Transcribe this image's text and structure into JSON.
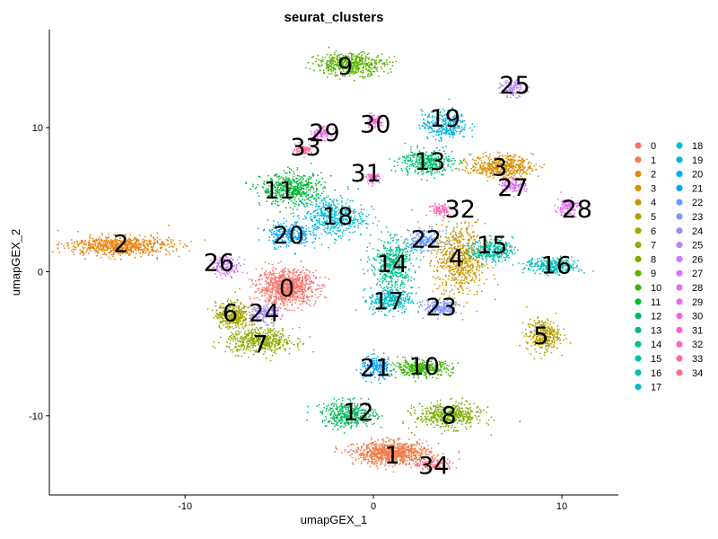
{
  "chart_data": {
    "type": "scatter",
    "title": "seurat_clusters",
    "xlabel": "umapGEX_1",
    "ylabel": "umapGEX_2",
    "xlim": [
      -17.2,
      13.0
    ],
    "ylim": [
      -15.5,
      16.8
    ],
    "xticks": [
      {
        "value": -10,
        "label": "-10"
      },
      {
        "value": 0,
        "label": "0"
      },
      {
        "value": 10,
        "label": "10"
      }
    ],
    "yticks": [
      {
        "value": 10,
        "label": "10"
      },
      {
        "value": 0,
        "label": "0"
      },
      {
        "value": -10,
        "label": "-10"
      }
    ],
    "grid": false,
    "legend_position": "right",
    "clusters": [
      {
        "id": "0",
        "label": "0",
        "color": "#F8766D",
        "center": [
          -4.6,
          -1.1
        ],
        "spread": [
          1.4,
          1.1
        ],
        "n": 900
      },
      {
        "id": "1",
        "label": "1",
        "color": "#F07E4C",
        "center": [
          1.0,
          -12.6
        ],
        "spread": [
          1.8,
          0.7
        ],
        "n": 900
      },
      {
        "id": "2",
        "label": "2",
        "color": "#E68613",
        "center": [
          -13.5,
          1.8
        ],
        "spread": [
          2.5,
          0.6
        ],
        "n": 700
      },
      {
        "id": "3",
        "label": "3",
        "color": "#D89000",
        "center": [
          6.8,
          7.3
        ],
        "spread": [
          1.5,
          0.7
        ],
        "n": 500
      },
      {
        "id": "4",
        "label": "4",
        "color": "#C79800",
        "center": [
          4.6,
          0.8
        ],
        "spread": [
          1.2,
          2.3
        ],
        "n": 650
      },
      {
        "id": "5",
        "label": "5",
        "color": "#B79F00",
        "center": [
          9.0,
          -4.4
        ],
        "spread": [
          0.8,
          1.0
        ],
        "n": 350
      },
      {
        "id": "6",
        "label": "6",
        "color": "#A3A500",
        "center": [
          -7.5,
          -3.0
        ],
        "spread": [
          0.8,
          0.8
        ],
        "n": 350
      },
      {
        "id": "7",
        "label": "7",
        "color": "#8EAB00",
        "center": [
          -6.0,
          -4.8
        ],
        "spread": [
          1.6,
          0.8
        ],
        "n": 500
      },
      {
        "id": "8",
        "label": "8",
        "color": "#7CAE00",
        "center": [
          4.0,
          -10.0
        ],
        "spread": [
          1.6,
          0.8
        ],
        "n": 450
      },
      {
        "id": "9",
        "label": "9",
        "color": "#5BB300",
        "center": [
          -1.2,
          14.4
        ],
        "spread": [
          1.7,
          0.7
        ],
        "n": 500
      },
      {
        "id": "10",
        "label": "10",
        "color": "#39B600",
        "center": [
          2.5,
          -6.7
        ],
        "spread": [
          1.5,
          0.5
        ],
        "n": 350
      },
      {
        "id": "11",
        "label": "11",
        "color": "#00BA38",
        "center": [
          -4.3,
          5.7
        ],
        "spread": [
          1.5,
          1.0
        ],
        "n": 500
      },
      {
        "id": "12",
        "label": "12",
        "color": "#00BC59",
        "center": [
          -1.3,
          -9.9
        ],
        "spread": [
          1.3,
          0.8
        ],
        "n": 400
      },
      {
        "id": "13",
        "label": "13",
        "color": "#00BE6C",
        "center": [
          2.8,
          7.6
        ],
        "spread": [
          1.3,
          0.8
        ],
        "n": 350
      },
      {
        "id": "14",
        "label": "14",
        "color": "#00C08B",
        "center": [
          1.0,
          0.5
        ],
        "spread": [
          1.0,
          1.6
        ],
        "n": 450
      },
      {
        "id": "15",
        "label": "15",
        "color": "#00BFA6",
        "center": [
          6.3,
          1.5
        ],
        "spread": [
          1.0,
          0.7
        ],
        "n": 300
      },
      {
        "id": "16",
        "label": "16",
        "color": "#00C0B8",
        "center": [
          9.5,
          0.4
        ],
        "spread": [
          1.3,
          0.5
        ],
        "n": 300
      },
      {
        "id": "17",
        "label": "17",
        "color": "#00BFC4",
        "center": [
          0.9,
          -2.0
        ],
        "spread": [
          1.0,
          0.8
        ],
        "n": 300
      },
      {
        "id": "18",
        "label": "18",
        "color": "#00BBDB",
        "center": [
          -2.2,
          3.8
        ],
        "spread": [
          1.6,
          1.3
        ],
        "n": 450
      },
      {
        "id": "19",
        "label": "19",
        "color": "#00B2DF",
        "center": [
          3.8,
          10.2
        ],
        "spread": [
          1.1,
          0.9
        ],
        "n": 300
      },
      {
        "id": "20",
        "label": "20",
        "color": "#00ACFC",
        "center": [
          -4.5,
          2.6
        ],
        "spread": [
          1.0,
          0.8
        ],
        "n": 250
      },
      {
        "id": "21",
        "label": "21",
        "color": "#00A5FF",
        "center": [
          0.2,
          -6.7
        ],
        "spread": [
          0.8,
          0.7
        ],
        "n": 200
      },
      {
        "id": "22",
        "label": "22",
        "color": "#619CFF",
        "center": [
          2.7,
          2.2
        ],
        "spread": [
          0.9,
          0.6
        ],
        "n": 200
      },
      {
        "id": "23",
        "label": "23",
        "color": "#8494FF",
        "center": [
          3.6,
          -2.5
        ],
        "spread": [
          0.8,
          0.5
        ],
        "n": 200
      },
      {
        "id": "24",
        "label": "24",
        "color": "#A58AFF",
        "center": [
          -5.8,
          -2.9
        ],
        "spread": [
          0.7,
          0.6
        ],
        "n": 150
      },
      {
        "id": "25",
        "label": "25",
        "color": "#B983FF",
        "center": [
          7.4,
          12.7
        ],
        "spread": [
          0.6,
          0.5
        ],
        "n": 120
      },
      {
        "id": "26",
        "label": "26",
        "color": "#CF78FF",
        "center": [
          -7.8,
          0.4
        ],
        "spread": [
          0.7,
          0.6
        ],
        "n": 150
      },
      {
        "id": "27",
        "label": "27",
        "color": "#DF70F8",
        "center": [
          7.4,
          6.0
        ],
        "spread": [
          0.6,
          0.5
        ],
        "n": 120
      },
      {
        "id": "28",
        "label": "28",
        "color": "#E76BF3",
        "center": [
          10.3,
          4.5
        ],
        "spread": [
          0.5,
          0.6
        ],
        "n": 120
      },
      {
        "id": "29",
        "label": "29",
        "color": "#F066EA",
        "center": [
          -2.8,
          9.6
        ],
        "spread": [
          0.5,
          0.4
        ],
        "n": 90
      },
      {
        "id": "30",
        "label": "30",
        "color": "#F763E0",
        "center": [
          0.0,
          10.4
        ],
        "spread": [
          0.4,
          0.4
        ],
        "n": 80
      },
      {
        "id": "31",
        "label": "31",
        "color": "#FC61D5",
        "center": [
          0.0,
          6.5
        ],
        "spread": [
          0.3,
          0.3
        ],
        "n": 70
      },
      {
        "id": "32",
        "label": "32",
        "color": "#FF63B6",
        "center": [
          3.6,
          4.3
        ],
        "spread": [
          0.6,
          0.4
        ],
        "n": 90
      },
      {
        "id": "33",
        "label": "33",
        "color": "#FF6A98",
        "center": [
          -3.7,
          8.5
        ],
        "spread": [
          0.4,
          0.3
        ],
        "n": 80
      },
      {
        "id": "34",
        "label": "34",
        "color": "#FD6F86",
        "center": [
          3.2,
          -13.4
        ],
        "spread": [
          1.0,
          0.4
        ],
        "n": 120
      }
    ],
    "label_positions": [
      {
        "id": "0",
        "x": -4.6,
        "y": -1.2
      },
      {
        "id": "1",
        "x": 1.0,
        "y": -12.8
      },
      {
        "id": "2",
        "x": -13.4,
        "y": 1.9
      },
      {
        "id": "3",
        "x": 6.7,
        "y": 7.2
      },
      {
        "id": "4",
        "x": 4.4,
        "y": 0.9
      },
      {
        "id": "5",
        "x": 8.9,
        "y": -4.5
      },
      {
        "id": "6",
        "x": -7.6,
        "y": -2.9
      },
      {
        "id": "7",
        "x": -6.0,
        "y": -5.1
      },
      {
        "id": "8",
        "x": 4.0,
        "y": -10.0
      },
      {
        "id": "9",
        "x": -1.5,
        "y": 14.2
      },
      {
        "id": "10",
        "x": 2.7,
        "y": -6.6
      },
      {
        "id": "11",
        "x": -5.0,
        "y": 5.6
      },
      {
        "id": "12",
        "x": -0.8,
        "y": -9.8
      },
      {
        "id": "13",
        "x": 3.0,
        "y": 7.6
      },
      {
        "id": "14",
        "x": 1.0,
        "y": 0.5
      },
      {
        "id": "15",
        "x": 6.3,
        "y": 1.8
      },
      {
        "id": "16",
        "x": 9.7,
        "y": 0.4
      },
      {
        "id": "17",
        "x": 0.8,
        "y": -2.1
      },
      {
        "id": "18",
        "x": -1.9,
        "y": 3.8
      },
      {
        "id": "19",
        "x": 3.8,
        "y": 10.6
      },
      {
        "id": "20",
        "x": -4.5,
        "y": 2.5
      },
      {
        "id": "21",
        "x": 0.1,
        "y": -6.7
      },
      {
        "id": "22",
        "x": 2.8,
        "y": 2.2
      },
      {
        "id": "23",
        "x": 3.6,
        "y": -2.5
      },
      {
        "id": "24",
        "x": -5.8,
        "y": -2.9
      },
      {
        "id": "25",
        "x": 7.5,
        "y": 12.9
      },
      {
        "id": "26",
        "x": -8.2,
        "y": 0.6
      },
      {
        "id": "27",
        "x": 7.4,
        "y": 5.8
      },
      {
        "id": "28",
        "x": 10.8,
        "y": 4.3
      },
      {
        "id": "29",
        "x": -2.6,
        "y": 9.6
      },
      {
        "id": "30",
        "x": 0.1,
        "y": 10.2
      },
      {
        "id": "31",
        "x": -0.4,
        "y": 6.8
      },
      {
        "id": "32",
        "x": 4.6,
        "y": 4.3
      },
      {
        "id": "33",
        "x": -3.6,
        "y": 8.6
      },
      {
        "id": "34",
        "x": 3.2,
        "y": -13.5
      }
    ]
  }
}
